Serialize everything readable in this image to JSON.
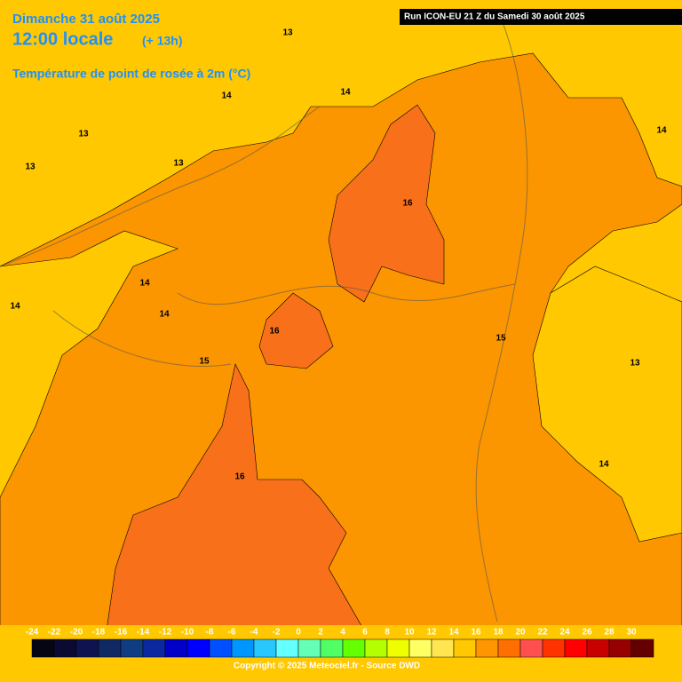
{
  "header": {
    "date": "Dimanche 31 août 2025",
    "time": "12:00 locale",
    "offset": "(+ 13h)",
    "title": "Température de point de rosée à 2m (°C)",
    "run": "Run ICON-EU 21 Z du Samedi 30 août 2025"
  },
  "contour_labels": [
    13,
    14,
    14,
    13,
    13,
    13,
    14,
    16,
    14,
    14,
    14,
    16,
    15,
    13,
    15,
    14,
    16
  ],
  "legend": [
    {
      "value": -24,
      "color": "#050514"
    },
    {
      "value": -22,
      "color": "#0a0a32"
    },
    {
      "value": -20,
      "color": "#0f1450"
    },
    {
      "value": -18,
      "color": "#102864"
    },
    {
      "value": -16,
      "color": "#0f3c82"
    },
    {
      "value": -14,
      "color": "#0a28a0"
    },
    {
      "value": -12,
      "color": "#0000c8"
    },
    {
      "value": -10,
      "color": "#0000ff"
    },
    {
      "value": -8,
      "color": "#0050ff"
    },
    {
      "value": -6,
      "color": "#0096ff"
    },
    {
      "value": -4,
      "color": "#28c8ff"
    },
    {
      "value": -2,
      "color": "#64ffff"
    },
    {
      "value": 0,
      "color": "#64ffb4"
    },
    {
      "value": 2,
      "color": "#50ff64"
    },
    {
      "value": 4,
      "color": "#64ff00"
    },
    {
      "value": 6,
      "color": "#b4ff00"
    },
    {
      "value": 8,
      "color": "#f0ff00"
    },
    {
      "value": 10,
      "color": "#ffff64"
    },
    {
      "value": 12,
      "color": "#ffe650"
    },
    {
      "value": 14,
      "color": "#ffc800"
    },
    {
      "value": 16,
      "color": "#ff9600"
    },
    {
      "value": 18,
      "color": "#ff6e00"
    },
    {
      "value": 20,
      "color": "#ff5050"
    },
    {
      "value": 22,
      "color": "#ff3200"
    },
    {
      "value": 24,
      "color": "#ff0000"
    },
    {
      "value": 26,
      "color": "#c80000"
    },
    {
      "value": 28,
      "color": "#960000"
    },
    {
      "value": 30,
      "color": "#640000"
    }
  ],
  "copyright": "Copyright © 2025 Meteociel.fr - Source DWD"
}
